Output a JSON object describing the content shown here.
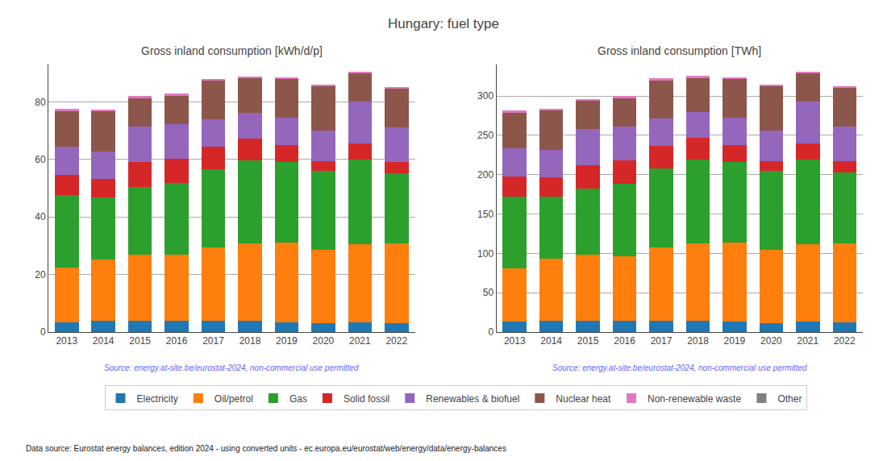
{
  "title": "Hungary: fuel type",
  "annotations": [
    "Data source: Eurostat energy balances, edition 2024 - using converted units - ec.europa.eu/eurostat/web/energy/data/energy-balances"
  ],
  "chart_data": [
    {
      "type": "bar",
      "stacked": true,
      "grid": true,
      "legend": "bottom",
      "title": "Gross inland consumption [kWh/d/p]",
      "annotations": [
        "Source: energy.at-site.be/eurostat-2024, non-commercial use permitted"
      ],
      "categories": [
        "2013",
        "2014",
        "2015",
        "2016",
        "2017",
        "2018",
        "2019",
        "2020",
        "2021",
        "2022"
      ],
      "ylim": [
        0,
        93
      ],
      "yticks": [
        0,
        20,
        40,
        60,
        80
      ],
      "series": [
        {
          "name": "Electricity",
          "color": "#1f77b4",
          "values": [
            3.5,
            3.8,
            4.0,
            3.8,
            4.0,
            3.8,
            3.5,
            3.0,
            3.5,
            3.2
          ]
        },
        {
          "name": "Oil/petrol",
          "color": "#ff7f0e",
          "values": [
            19.0,
            21.5,
            23.0,
            23.0,
            25.5,
            27.0,
            27.5,
            25.5,
            27.0,
            27.5
          ]
        },
        {
          "name": "Gas",
          "color": "#2ca02c",
          "values": [
            25.0,
            21.5,
            23.5,
            25.0,
            27.0,
            29.0,
            28.0,
            27.5,
            29.5,
            24.5
          ]
        },
        {
          "name": "Solid fossil",
          "color": "#d62728",
          "values": [
            7.0,
            6.5,
            8.5,
            8.5,
            8.0,
            7.5,
            6.0,
            3.5,
            5.5,
            4.0
          ]
        },
        {
          "name": "Renewables & biofuel",
          "color": "#9467bd",
          "values": [
            10.0,
            9.5,
            12.5,
            12.0,
            9.5,
            9.0,
            9.5,
            10.5,
            14.5,
            12.0
          ]
        },
        {
          "name": "Nuclear heat",
          "color": "#8c564b",
          "values": [
            12.5,
            14.0,
            10.0,
            10.0,
            13.5,
            12.0,
            13.5,
            15.5,
            10.0,
            13.5
          ]
        },
        {
          "name": "Non-renewable waste",
          "color": "#e377c2",
          "values": [
            0.5,
            0.5,
            0.5,
            0.5,
            0.5,
            0.5,
            0.5,
            0.5,
            0.5,
            0.5
          ]
        },
        {
          "name": "Other",
          "color": "#7f7f7f",
          "values": [
            0.0,
            0.0,
            0.0,
            0.0,
            0.0,
            0.0,
            0.0,
            0.0,
            0.0,
            0.0
          ]
        }
      ]
    },
    {
      "type": "bar",
      "stacked": true,
      "grid": true,
      "legend": "bottom",
      "title": "Gross inland consumption [TWh]",
      "annotations": [
        "Source: energy.at-site.be/eurostat-2024, non-commercial use permitted"
      ],
      "categories": [
        "2013",
        "2014",
        "2015",
        "2016",
        "2017",
        "2018",
        "2019",
        "2020",
        "2021",
        "2022"
      ],
      "ylim": [
        0,
        340
      ],
      "yticks": [
        0,
        50,
        100,
        150,
        200,
        250,
        300
      ],
      "series": [
        {
          "name": "Electricity",
          "color": "#1f77b4",
          "values": [
            13.0,
            14.0,
            14.5,
            14.0,
            14.5,
            14.0,
            13.5,
            11.0,
            13.0,
            12.0
          ]
        },
        {
          "name": "Oil/petrol",
          "color": "#ff7f0e",
          "values": [
            68.0,
            79.0,
            84.0,
            82.0,
            93.0,
            99.0,
            100.5,
            93.0,
            99.0,
            100.5
          ]
        },
        {
          "name": "Gas",
          "color": "#2ca02c",
          "values": [
            91.0,
            79.5,
            84.0,
            92.0,
            100.0,
            106.0,
            102.0,
            100.5,
            107.5,
            90.0
          ]
        },
        {
          "name": "Solid fossil",
          "color": "#d62728",
          "values": [
            25.5,
            24.0,
            30.0,
            30.0,
            29.0,
            27.5,
            22.0,
            13.0,
            20.0,
            14.5
          ]
        },
        {
          "name": "Renewables & biofuel",
          "color": "#9467bd",
          "values": [
            36.5,
            34.5,
            45.5,
            43.5,
            34.5,
            33.0,
            34.5,
            38.5,
            53.0,
            44.0
          ]
        },
        {
          "name": "Nuclear heat",
          "color": "#8c564b",
          "values": [
            45.5,
            51.0,
            36.5,
            36.5,
            49.5,
            44.0,
            49.5,
            56.5,
            36.5,
            49.5
          ]
        },
        {
          "name": "Non-renewable waste",
          "color": "#e377c2",
          "values": [
            2.0,
            1.5,
            1.5,
            2.0,
            2.0,
            2.0,
            2.0,
            2.0,
            2.0,
            2.0
          ]
        },
        {
          "name": "Other",
          "color": "#7f7f7f",
          "values": [
            0.0,
            0.0,
            0.0,
            0.0,
            0.0,
            0.0,
            0.0,
            0.0,
            0.0,
            0.0
          ]
        }
      ]
    }
  ]
}
